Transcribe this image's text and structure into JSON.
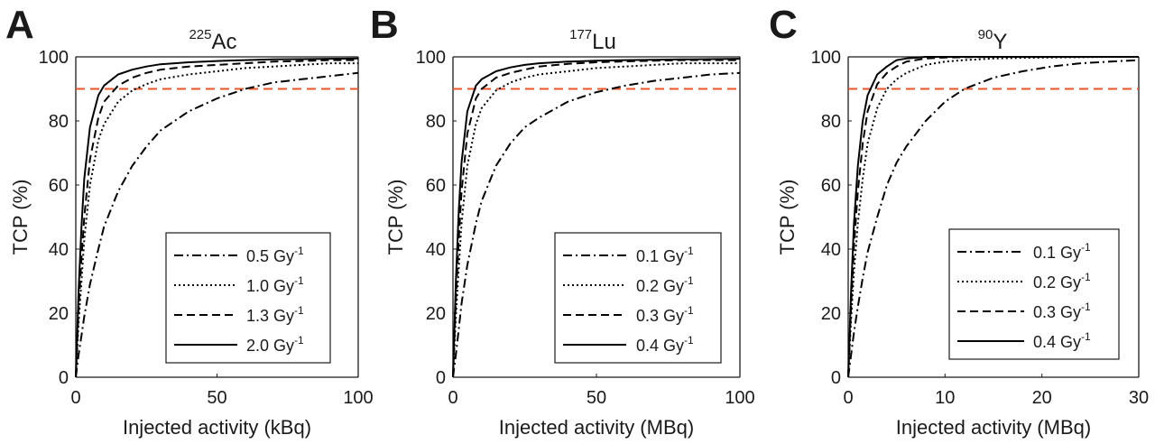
{
  "chart_data": [
    {
      "type": "line",
      "panel_label": "A",
      "title": {
        "superscript": "225",
        "main": "Ac"
      },
      "xlabel": "Injected activity (kBq)",
      "ylabel": "TCP (%)",
      "xlim": [
        0,
        100
      ],
      "ylim": [
        0,
        100
      ],
      "xticks": [
        "0",
        "50",
        "100"
      ],
      "yticks": [
        "0",
        "20",
        "40",
        "60",
        "80",
        "100"
      ],
      "reference_line": {
        "y": 90,
        "color": "#e8562a",
        "style": "dashed"
      },
      "legend_position": "lower-right",
      "series": [
        {
          "name": "0.5 Gy",
          "name_sup": "-1",
          "style": "dashdot",
          "x": [
            1,
            2,
            3,
            5,
            8,
            10,
            15,
            20,
            25,
            30,
            40,
            50,
            60,
            70,
            80,
            90,
            100
          ],
          "y": [
            7,
            13,
            19,
            29,
            40,
            47,
            58,
            66,
            72,
            77,
            83,
            87,
            90,
            92,
            93,
            94,
            95
          ]
        },
        {
          "name": "1.0 Gy",
          "name_sup": "-1",
          "style": "dotted",
          "x": [
            1,
            2,
            3,
            5,
            8,
            10,
            15,
            20,
            25,
            30,
            40,
            50,
            60,
            70,
            80,
            90,
            100
          ],
          "y": [
            17,
            30,
            43,
            60,
            74,
            79,
            86,
            89.5,
            91.5,
            93,
            94.5,
            95.5,
            96.5,
            97,
            97.5,
            98,
            98
          ]
        },
        {
          "name": "1.3 Gy",
          "name_sup": "-1",
          "style": "dashed",
          "x": [
            1,
            2,
            3,
            5,
            8,
            10,
            15,
            20,
            25,
            30,
            40,
            50,
            60,
            70,
            80,
            90,
            100
          ],
          "y": [
            21,
            37,
            50,
            68,
            81,
            86,
            91,
            93.5,
            95,
            96,
            97,
            97.5,
            98,
            98.5,
            98.7,
            99,
            99
          ]
        },
        {
          "name": "2.0 Gy",
          "name_sup": "-1",
          "style": "solid",
          "x": [
            1,
            2,
            3,
            5,
            8,
            10,
            15,
            20,
            25,
            30,
            40,
            50,
            60,
            70,
            80,
            90,
            100
          ],
          "y": [
            27,
            47,
            62,
            78,
            88,
            91,
            94.5,
            96,
            97,
            97.7,
            98.3,
            98.7,
            99,
            99.2,
            99.3,
            99.4,
            99.5
          ]
        }
      ]
    },
    {
      "type": "line",
      "panel_label": "B",
      "title": {
        "superscript": "177",
        "main": "Lu"
      },
      "xlabel": "Injected activity (MBq)",
      "ylabel": "TCP (%)",
      "xlim": [
        0,
        100
      ],
      "ylim": [
        0,
        100
      ],
      "xticks": [
        "0",
        "50",
        "100"
      ],
      "yticks": [
        "0",
        "20",
        "40",
        "60",
        "80",
        "100"
      ],
      "reference_line": {
        "y": 90,
        "color": "#e8562a",
        "style": "dashed"
      },
      "legend_position": "lower-right",
      "series": [
        {
          "name": "0.1 Gy",
          "name_sup": "-1",
          "style": "dashdot",
          "x": [
            1,
            2,
            3,
            5,
            8,
            10,
            15,
            20,
            25,
            30,
            40,
            50,
            60,
            70,
            80,
            90,
            100
          ],
          "y": [
            7,
            15,
            23,
            35,
            48,
            55,
            66,
            73,
            78,
            81,
            86,
            89,
            91,
            92.5,
            93.5,
            94.5,
            95
          ]
        },
        {
          "name": "0.2 Gy",
          "name_sup": "-1",
          "style": "dotted",
          "x": [
            1,
            2,
            3,
            5,
            8,
            10,
            15,
            20,
            25,
            30,
            40,
            50,
            60,
            70,
            80,
            90,
            100
          ],
          "y": [
            19,
            34,
            48,
            66,
            79,
            84,
            89.5,
            92,
            93.5,
            94.5,
            95.5,
            96.5,
            97,
            97.5,
            98,
            98,
            98
          ]
        },
        {
          "name": "0.3 Gy",
          "name_sup": "-1",
          "style": "dashed",
          "x": [
            1,
            2,
            3,
            5,
            8,
            10,
            15,
            20,
            25,
            30,
            40,
            50,
            60,
            70,
            80,
            90,
            100
          ],
          "y": [
            24,
            43,
            58,
            76,
            87,
            90,
            93.5,
            95,
            96,
            97,
            97.8,
            98.3,
            98.6,
            98.8,
            99,
            99,
            99
          ]
        },
        {
          "name": "0.4 Gy",
          "name_sup": "-1",
          "style": "solid",
          "x": [
            1,
            2,
            3,
            5,
            8,
            10,
            15,
            20,
            25,
            30,
            40,
            50,
            60,
            70,
            80,
            90,
            100
          ],
          "y": [
            30,
            52,
            67,
            83,
            91,
            93,
            95.5,
            96.7,
            97.5,
            98,
            98.5,
            98.8,
            99,
            99.1,
            99.2,
            99.3,
            99.4
          ]
        }
      ]
    },
    {
      "type": "line",
      "panel_label": "C",
      "title": {
        "superscript": "90",
        "main": "Y"
      },
      "xlabel": "Injected activity (MBq)",
      "ylabel": "TCP (%)",
      "xlim": [
        0,
        30
      ],
      "ylim": [
        0,
        100
      ],
      "xticks": [
        "0",
        "10",
        "20",
        "30"
      ],
      "yticks": [
        "0",
        "20",
        "40",
        "60",
        "80",
        "100"
      ],
      "reference_line": {
        "y": 90,
        "color": "#e8562a",
        "style": "dashed"
      },
      "legend_position": "lower-right",
      "series": [
        {
          "name": "0.1 Gy",
          "name_sup": "-1",
          "style": "dashdot",
          "x": [
            0.3,
            0.6,
            1,
            1.5,
            2,
            3,
            4,
            5,
            6,
            8,
            10,
            12,
            15,
            18,
            21,
            24,
            27,
            30
          ],
          "y": [
            7,
            14,
            22,
            31,
            39,
            50,
            60,
            67,
            72,
            80,
            86,
            90,
            93.5,
            95.5,
            97,
            98,
            98.5,
            99
          ]
        },
        {
          "name": "0.2 Gy",
          "name_sup": "-1",
          "style": "dotted",
          "x": [
            0.3,
            0.6,
            1,
            1.5,
            2,
            3,
            4,
            5,
            6,
            8,
            10,
            12,
            15,
            18,
            21,
            24,
            27,
            30
          ],
          "y": [
            18,
            33,
            48,
            62,
            73,
            84,
            90,
            93,
            95,
            97.5,
            98.5,
            99,
            99.5,
            99.7,
            99.8,
            99.9,
            100,
            100
          ]
        },
        {
          "name": "0.3 Gy",
          "name_sup": "-1",
          "style": "dashed",
          "x": [
            0.3,
            0.6,
            1,
            1.5,
            2,
            3,
            4,
            5,
            6,
            8,
            10,
            12,
            15,
            18,
            21,
            24,
            27,
            30
          ],
          "y": [
            22,
            41,
            58,
            73,
            83,
            91.5,
            95,
            97,
            98.5,
            99.5,
            99.8,
            99.9,
            100,
            100,
            100,
            100,
            100,
            100
          ]
        },
        {
          "name": "0.4 Gy",
          "name_sup": "-1",
          "style": "solid",
          "x": [
            0.3,
            0.6,
            1,
            1.5,
            2,
            3,
            4,
            5,
            6,
            8,
            10,
            12,
            15,
            18,
            21,
            24,
            27,
            30
          ],
          "y": [
            27,
            48,
            66,
            80,
            88,
            94.5,
            97,
            99,
            99.5,
            100,
            100,
            100,
            100,
            100,
            100,
            100,
            100,
            100
          ]
        }
      ]
    }
  ]
}
